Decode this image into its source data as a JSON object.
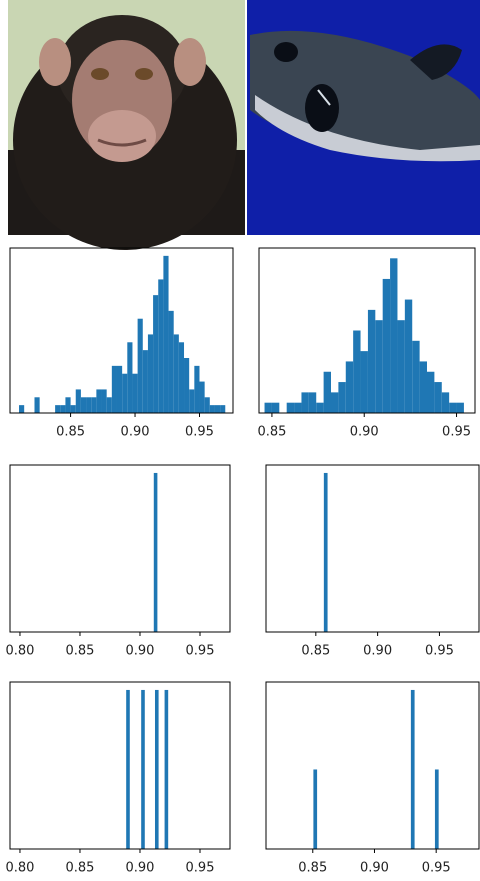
{
  "chart_data": [
    {
      "type": "histogram",
      "color": "#1f77b4",
      "bins": [
        0.81,
        0.814,
        0.818,
        0.822,
        0.826,
        0.83,
        0.834,
        0.838,
        0.842,
        0.846,
        0.85,
        0.854,
        0.858,
        0.862,
        0.866,
        0.87,
        0.874,
        0.878,
        0.882,
        0.886,
        0.89,
        0.894,
        0.898,
        0.902,
        0.906,
        0.91,
        0.914,
        0.918,
        0.922,
        0.926,
        0.93,
        0.934,
        0.938,
        0.942,
        0.946,
        0.95,
        0.954,
        0.958,
        0.962,
        0.966,
        0.97
      ],
      "values": [
        1,
        0,
        0,
        2,
        0,
        0,
        0,
        1,
        1,
        2,
        1,
        3,
        2,
        2,
        2,
        3,
        3,
        2,
        6,
        6,
        5,
        9,
        5,
        12,
        8,
        10,
        15,
        17,
        20,
        13,
        10,
        9,
        7,
        3,
        6,
        4,
        2,
        1,
        1,
        1
      ],
      "xlim": [
        0.803,
        0.976
      ],
      "ylim": [
        0,
        21
      ],
      "xticks": [
        0.85,
        {
          "value": 0.9,
          "label": "0.90"
        },
        0.95
      ]
    },
    {
      "type": "histogram",
      "color": "#1f77b4",
      "bins": [
        0.846,
        0.85,
        0.854,
        0.858,
        0.862,
        0.866,
        0.87,
        0.874,
        0.878,
        0.882,
        0.886,
        0.89,
        0.894,
        0.898,
        0.902,
        0.906,
        0.91,
        0.914,
        0.918,
        0.922,
        0.926,
        0.93,
        0.934,
        0.938,
        0.942,
        0.946,
        0.95,
        0.954
      ],
      "values": [
        1,
        1,
        0,
        1,
        1,
        2,
        2,
        1,
        4,
        2,
        3,
        5,
        8,
        6,
        10,
        9,
        13,
        15,
        9,
        11,
        7,
        5,
        4,
        3,
        2,
        1,
        1
      ],
      "xlim": [
        0.843,
        0.96
      ],
      "ylim": [
        0,
        16
      ],
      "xticks": [
        0.85,
        {
          "value": 0.9,
          "label": "0.90"
        },
        0.95
      ]
    },
    {
      "type": "histogram",
      "color": "#1f77b4",
      "bins": [
        0.9115,
        0.9145
      ],
      "values": [
        1
      ],
      "xlim": [
        0.7917,
        0.975
      ],
      "ylim": [
        0,
        1.05
      ],
      "xticks": [
        {
          "value": 0.8,
          "label": "0.80"
        },
        0.85,
        {
          "value": 0.9,
          "label": "0.90"
        },
        0.95
      ]
    },
    {
      "type": "histogram",
      "color": "#1f77b4",
      "bins": [
        0.8565,
        0.8595
      ],
      "values": [
        1
      ],
      "xlim": [
        0.8097,
        0.982
      ],
      "ylim": [
        0,
        1.05
      ],
      "xticks": [
        0.85,
        {
          "value": 0.9,
          "label": "0.90"
        },
        0.95
      ]
    },
    {
      "type": "histogram",
      "color": "#1f77b4",
      "bins": [
        0.8885,
        0.8915,
        0.901,
        0.904,
        0.9125,
        0.9155,
        0.9205,
        0.9235
      ],
      "values": [
        1,
        0,
        1,
        0,
        1,
        0,
        1
      ],
      "xlim": [
        0.7917,
        0.975
      ],
      "ylim": [
        0,
        1.05
      ],
      "xticks": [
        {
          "value": 0.8,
          "label": "0.80"
        },
        0.85,
        {
          "value": 0.9,
          "label": "0.90"
        },
        0.95
      ]
    },
    {
      "type": "histogram",
      "color": "#1f77b4",
      "bins": [
        0.8505,
        0.8535,
        0.9295,
        0.9325,
        0.949,
        0.952
      ],
      "values": [
        1,
        0,
        2,
        0,
        1
      ],
      "xlim": [
        0.8121,
        0.9847
      ],
      "ylim": [
        0,
        2.1
      ],
      "xticks": [
        0.85,
        {
          "value": 0.9,
          "label": "0.90"
        },
        0.95
      ]
    }
  ]
}
